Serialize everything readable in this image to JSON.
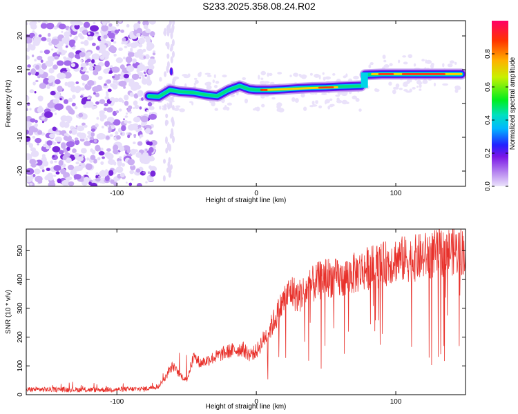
{
  "title": "S233.2025.358.08.24.R02",
  "spectrogram": {
    "xlabel": "Height of straight line (km)",
    "ylabel": "Frequency (Hz)",
    "xlim": [
      -165,
      150
    ],
    "ylim": [
      -24.5,
      24.5
    ],
    "xticks": [
      -100,
      0,
      100
    ],
    "yticks": [
      -20,
      -10,
      0,
      10,
      20
    ],
    "colorbar": {
      "label": "Normalized spectral amplitude",
      "ticks": [
        0.0,
        0.2,
        0.4,
        0.6,
        0.8
      ],
      "range": [
        0,
        1
      ]
    }
  },
  "chart_data": [
    {
      "type": "heatmap",
      "title": "",
      "xlabel": "Height of straight line (km)",
      "ylabel": "Frequency (Hz)",
      "xlim": [
        -165,
        150
      ],
      "ylim": [
        -24.5,
        24.5
      ],
      "colorscale": "rainbow (0 = lavender, 1 = red)",
      "ridge": {
        "description_points_x": [
          -77,
          -70,
          -62,
          -55,
          -45,
          -35,
          -28,
          -20,
          -12,
          -5,
          0,
          10,
          20,
          30,
          40,
          50,
          60,
          75,
          78,
          90,
          100,
          110,
          120,
          130,
          140,
          147
        ],
        "description_points_y": [
          2.2,
          2.0,
          4.0,
          3.5,
          3.2,
          2.5,
          2.2,
          4.0,
          5.2,
          4.2,
          4.0,
          4.0,
          4.2,
          4.5,
          4.7,
          4.8,
          5.0,
          5.2,
          8.5,
          8.7,
          8.7,
          8.7,
          8.7,
          8.7,
          8.7,
          8.7
        ]
      },
      "noise_region_x": [
        -165,
        -78
      ]
    },
    {
      "type": "line",
      "title": "",
      "xlabel": "Height of straight line (km)",
      "ylabel": "SNR (10 * v/v)",
      "xlim": [
        -165,
        150
      ],
      "ylim": [
        0,
        575
      ],
      "color": "#e8312b",
      "xticks": [
        -100,
        0,
        100
      ],
      "yticks": [
        0,
        100,
        200,
        300,
        400,
        500
      ],
      "envelope_x": [
        -165,
        -140,
        -120,
        -100,
        -80,
        -70,
        -65,
        -60,
        -55,
        -50,
        -45,
        -40,
        -30,
        -20,
        -10,
        -5,
        0,
        5,
        10,
        15,
        20,
        25,
        30,
        40,
        50,
        60,
        70,
        80,
        90,
        100,
        110,
        120,
        130,
        140,
        150
      ],
      "envelope_y": [
        18,
        18,
        17,
        18,
        20,
        30,
        60,
        100,
        70,
        50,
        130,
        110,
        130,
        150,
        160,
        140,
        150,
        190,
        230,
        280,
        330,
        360,
        340,
        380,
        410,
        400,
        420,
        440,
        450,
        470,
        470,
        480,
        490,
        500,
        500
      ]
    }
  ]
}
